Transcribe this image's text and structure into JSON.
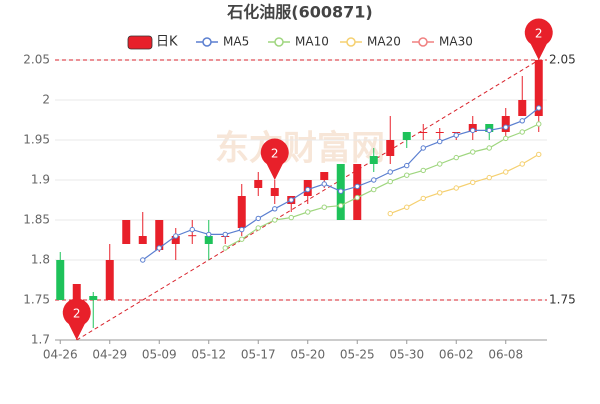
{
  "chart_data": {
    "type": "candlestick",
    "title": "石化油服(600871)",
    "watermark": "东方财富网",
    "categories": [
      "04-26",
      null,
      null,
      "04-29",
      null,
      null,
      "05-09",
      null,
      null,
      "05-12",
      null,
      null,
      "05-17",
      null,
      null,
      "05-20",
      null,
      null,
      "05-25",
      null,
      null,
      "05-30",
      null,
      null,
      "06-02",
      null,
      null,
      "06-08",
      null,
      null
    ],
    "candle_name": "日K",
    "up_color": "#e8202a",
    "down_color": "#1ec25a",
    "open": [
      1.8,
      1.75,
      1.755,
      1.75,
      1.82,
      1.82,
      1.8125,
      1.82,
      1.83,
      1.83,
      1.83,
      1.84,
      1.89,
      1.88,
      1.87,
      1.88,
      1.9,
      1.92,
      1.85,
      1.93,
      1.93,
      1.96,
      1.96,
      1.96,
      1.96,
      1.96,
      1.97,
      1.96,
      1.98,
      1.98
    ],
    "high": [
      1.81,
      1.77,
      1.76,
      1.82,
      1.85,
      1.86,
      1.85,
      1.84,
      1.85,
      1.85,
      1.83,
      1.895,
      1.91,
      1.9,
      1.88,
      1.9,
      1.91,
      1.92,
      1.92,
      1.94,
      1.98,
      1.96,
      1.97,
      1.965,
      1.96,
      1.98,
      1.97,
      1.99,
      2.03,
      2.05
    ],
    "low": [
      1.75,
      1.7,
      1.715,
      1.75,
      1.82,
      1.82,
      1.81,
      1.8,
      1.82,
      1.8,
      1.82,
      1.83,
      1.88,
      1.87,
      1.86,
      1.87,
      1.89,
      1.85,
      1.85,
      1.91,
      1.92,
      1.94,
      1.95,
      1.95,
      1.95,
      1.95,
      1.95,
      1.95,
      1.98,
      1.96
    ],
    "close": [
      1.75,
      1.77,
      1.75,
      1.8,
      1.85,
      1.83,
      1.85,
      1.83,
      1.831,
      1.82,
      1.83,
      1.88,
      1.9,
      1.89,
      1.88,
      1.9,
      1.91,
      1.85,
      1.92,
      1.92,
      1.95,
      1.95,
      1.96,
      1.96,
      1.96,
      1.97,
      1.96,
      1.98,
      2.0,
      2.05
    ],
    "series": [
      {
        "name": "MA5",
        "color": "#5b7fd0",
        "values": [
          null,
          null,
          null,
          null,
          null,
          1.8,
          1.815,
          1.83,
          1.838,
          1.832,
          1.832,
          1.838,
          1.852,
          1.864,
          1.875,
          1.888,
          1.895,
          1.886,
          1.892,
          1.9,
          1.91,
          1.918,
          1.94,
          1.948,
          1.956,
          1.962,
          1.962,
          1.966,
          1.974,
          1.99
        ]
      },
      {
        "name": "MA10",
        "color": "#9fd67f",
        "values": [
          null,
          null,
          null,
          null,
          null,
          null,
          null,
          null,
          null,
          null,
          1.815,
          1.826,
          1.84,
          1.85,
          1.853,
          1.86,
          1.866,
          1.868,
          1.878,
          1.888,
          1.898,
          1.906,
          1.912,
          1.92,
          1.928,
          1.935,
          1.94,
          1.952,
          1.96,
          1.97
        ]
      },
      {
        "name": "MA20",
        "color": "#f5d070",
        "values": [
          null,
          null,
          null,
          null,
          null,
          null,
          null,
          null,
          null,
          null,
          null,
          null,
          null,
          null,
          null,
          null,
          null,
          null,
          null,
          null,
          1.858,
          1.866,
          1.877,
          1.884,
          1.89,
          1.897,
          1.903,
          1.91,
          1.92,
          1.932
        ]
      },
      {
        "name": "MA30",
        "color": "#f08080",
        "values": [
          null,
          null,
          null,
          null,
          null,
          null,
          null,
          null,
          null,
          null,
          null,
          null,
          null,
          null,
          null,
          null,
          null,
          null,
          null,
          null,
          null,
          null,
          null,
          null,
          null,
          null,
          null,
          null,
          null,
          null
        ]
      }
    ],
    "ylim": [
      1.7,
      2.05
    ],
    "yticks": [
      1.7,
      1.75,
      1.8,
      1.85,
      1.9,
      1.95,
      2,
      2.05
    ],
    "grid": true,
    "hlines": [
      2.05,
      1.75
    ],
    "hline_color": "#d9232c",
    "markers": [
      {
        "label": "2",
        "price": "high",
        "value": 2.05
      },
      {
        "label": "2",
        "price": "high",
        "value": 1.9
      },
      {
        "label": "2",
        "price": "low",
        "value": 1.7
      }
    ],
    "marker_color": "#e8202a"
  }
}
